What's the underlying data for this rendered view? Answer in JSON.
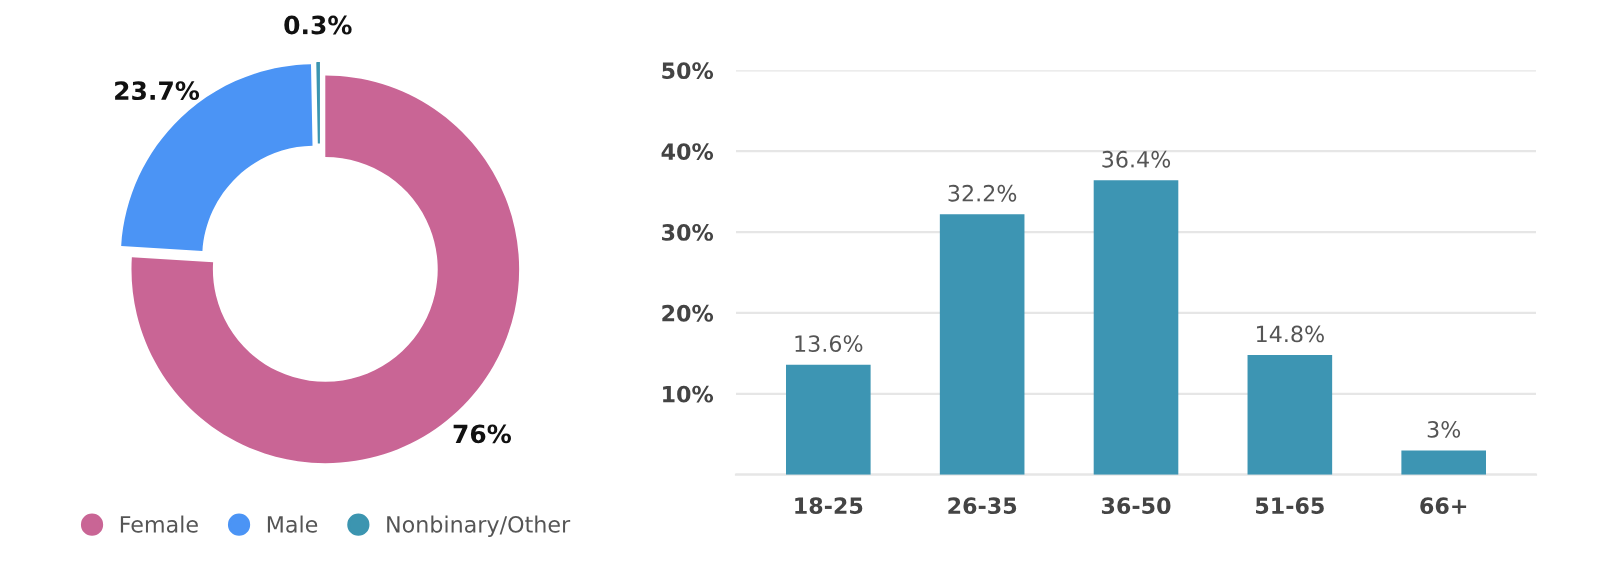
{
  "chart_data": [
    {
      "type": "donut",
      "categories": [
        "Female",
        "Male",
        "Nonbinary/Other"
      ],
      "values": [
        76,
        23.7,
        0.3
      ],
      "colors": [
        "#c96595",
        "#4b94f5",
        "#3c95b0"
      ],
      "value_labels": [
        "76%",
        "23.7%",
        "0.3%"
      ],
      "legend": "bottom"
    },
    {
      "type": "bar",
      "categories": [
        "18-25",
        "26-35",
        "36-50",
        "51-65",
        "66+"
      ],
      "values": [
        13.6,
        32.2,
        36.4,
        14.8,
        3
      ],
      "color": "#3d95b3",
      "value_labels": [
        "13.6%",
        "32.2%",
        "36.4%",
        "14.8%",
        "3%"
      ],
      "ylim": [
        0,
        50
      ],
      "yticks": [
        {
          "value": 0,
          "label": null
        },
        {
          "value": 10,
          "label": "10%"
        },
        {
          "value": 20,
          "label": "20%"
        },
        {
          "value": 30,
          "label": "30%"
        },
        {
          "value": 40,
          "label": "40%"
        },
        {
          "value": 50,
          "label": "50%"
        }
      ],
      "grid": "y"
    }
  ]
}
